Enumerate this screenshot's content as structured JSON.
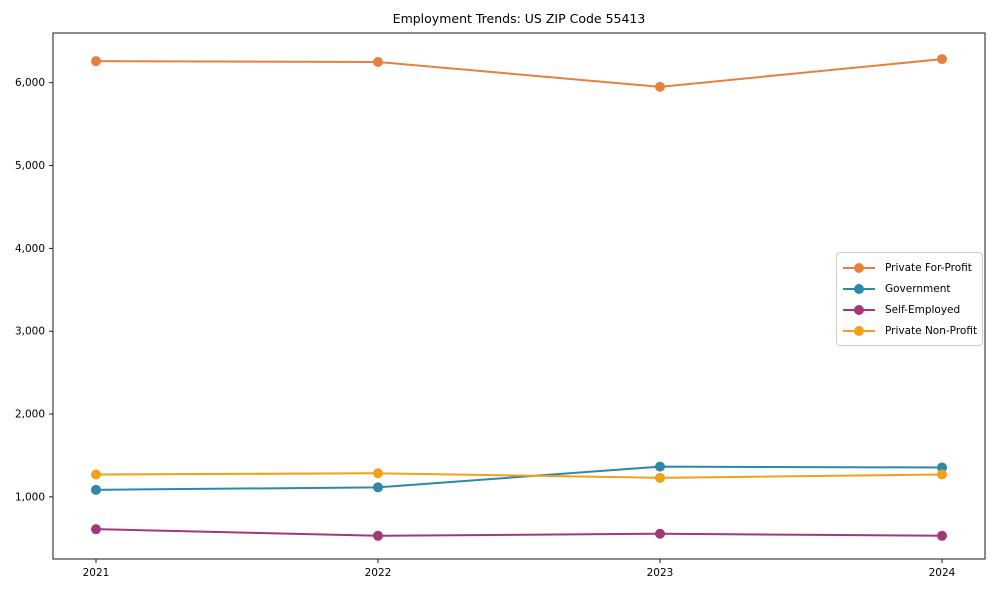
{
  "chart_data": {
    "type": "line",
    "title": "Employment Trends: US ZIP Code 55413",
    "xlabel": "",
    "ylabel": "",
    "categories": [
      "2021",
      "2022",
      "2023",
      "2024"
    ],
    "series": [
      {
        "name": "Private For-Profit",
        "color": "#E8803D",
        "values": [
          6260,
          6250,
          5950,
          6285
        ]
      },
      {
        "name": "Government",
        "color": "#2E89A6",
        "values": [
          1085,
          1115,
          1365,
          1355
        ]
      },
      {
        "name": "Self-Employed",
        "color": "#A43778",
        "values": [
          610,
          530,
          555,
          530
        ]
      },
      {
        "name": "Private Non-Profit",
        "color": "#F0A11B",
        "values": [
          1270,
          1285,
          1230,
          1270
        ]
      }
    ],
    "yticks": [
      1000,
      2000,
      3000,
      4000,
      5000,
      6000
    ],
    "ytick_labels": [
      "1,000",
      "2,000",
      "3,000",
      "4,000",
      "5,000",
      "6,000"
    ],
    "ylim": [
      250,
      6600
    ],
    "grid": false,
    "legend_position": "center right",
    "marker": "circle",
    "axis_color": "#1a1a1a",
    "background_color": "#ffffff"
  }
}
